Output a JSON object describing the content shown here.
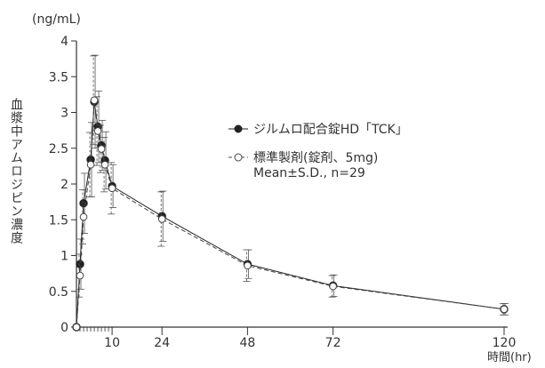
{
  "chart_data": {
    "type": "line",
    "ylabel": "血漿中アムロジピン濃度",
    "yunit": "(ng/mL)",
    "xlabel": "時間(hr)",
    "xlim": [
      0,
      120
    ],
    "ylim": [
      0,
      4
    ],
    "xticks": [
      10,
      24,
      48,
      72,
      120
    ],
    "yticks": [
      0,
      0.5,
      1,
      1.5,
      2,
      2.5,
      3,
      3.5,
      4
    ],
    "ytick_labels": [
      "0",
      "0.5",
      "1",
      "1.5",
      "2",
      "2.5",
      "3",
      "3.5",
      "4"
    ],
    "legend": {
      "placement": "right-middle",
      "note": "Mean±S.D., n=29"
    },
    "series": [
      {
        "name": "ジルムロ配合錠HD「TCK」",
        "marker": "filled-circle",
        "line": "solid",
        "color": "#222222",
        "x": [
          0,
          1,
          2,
          4,
          5,
          6,
          7,
          8,
          10,
          24,
          48,
          72,
          120
        ],
        "y": [
          0,
          0.88,
          1.73,
          2.34,
          3.15,
          2.8,
          2.54,
          2.33,
          1.97,
          1.55,
          0.88,
          0.58,
          0.25
        ],
        "sd": [
          0,
          0.35,
          0.42,
          0.52,
          0.65,
          0.5,
          0.35,
          0.4,
          0.3,
          0.35,
          0.2,
          0.15,
          0.08
        ]
      },
      {
        "name": "標準製剤(錠剤、5mg)",
        "marker": "open-circle",
        "line": "dashed",
        "color": "#444444",
        "x": [
          0,
          1,
          2,
          4,
          5,
          6,
          7,
          8,
          10,
          24,
          48,
          72,
          120
        ],
        "y": [
          0,
          0.72,
          1.54,
          2.27,
          3.17,
          2.74,
          2.49,
          2.27,
          1.94,
          1.51,
          0.86,
          0.57,
          0.25
        ],
        "sd": [
          0,
          0.3,
          0.38,
          0.45,
          0.62,
          0.48,
          0.33,
          0.38,
          0.36,
          0.38,
          0.22,
          0.15,
          0.08
        ]
      }
    ]
  }
}
